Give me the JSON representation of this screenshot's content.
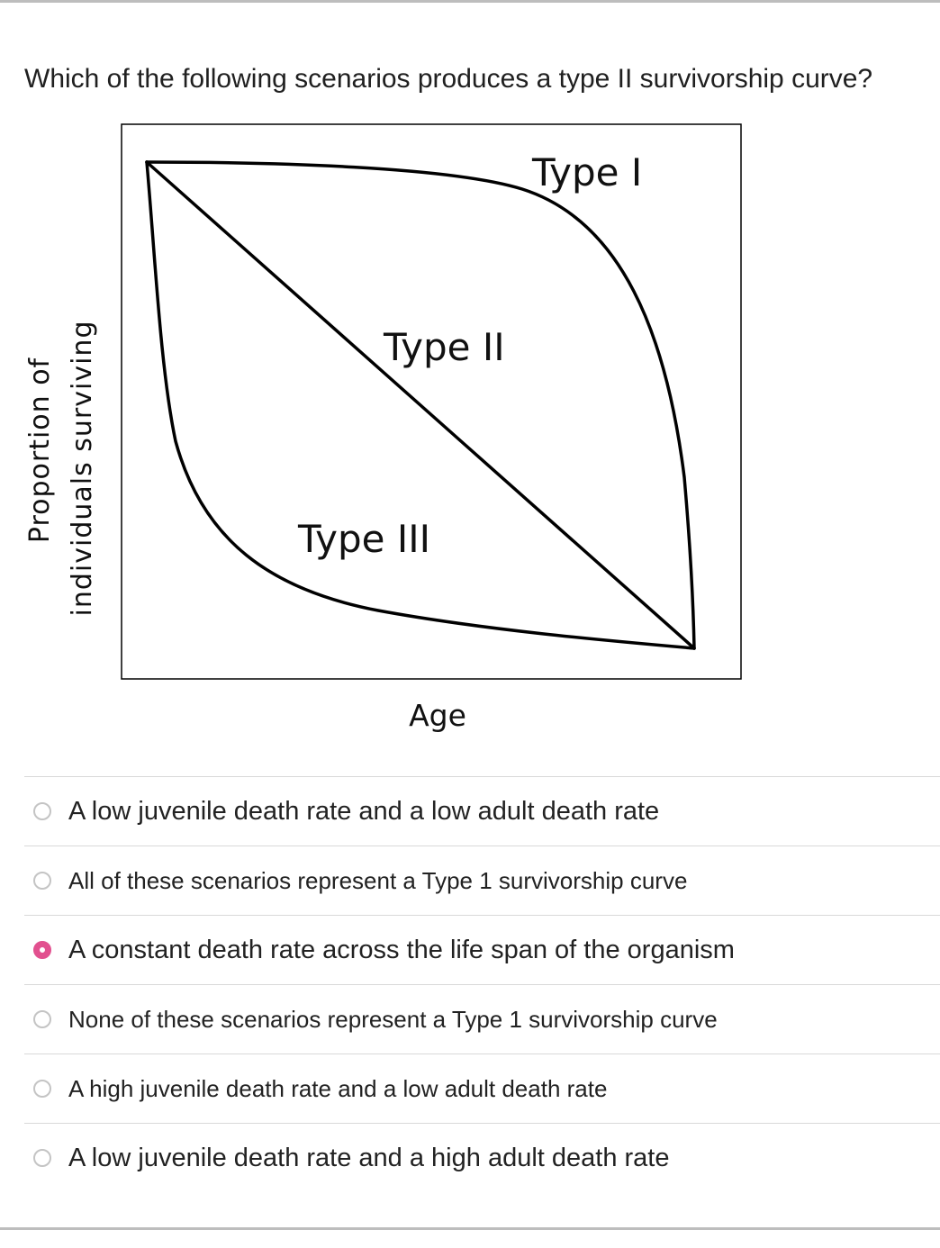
{
  "question": {
    "text": "Which of the following scenarios produces a type II survivorship curve?"
  },
  "figure": {
    "y_axis_label_line1": "Proportion of",
    "y_axis_label_line2": "individuals surviving",
    "x_axis_label": "Age",
    "curve_labels": {
      "type1": "Type I",
      "type2": "Type II",
      "type3": "Type III"
    },
    "line_color": "#000000"
  },
  "options": [
    {
      "label": "A low juvenile death rate and a low adult death rate",
      "selected": false
    },
    {
      "label": "All of these scenarios represent a Type 1 survivorship curve",
      "selected": false
    },
    {
      "label": "A constant death rate across the life span of the organism",
      "selected": true
    },
    {
      "label": "None of these scenarios represent a Type 1 survivorship curve",
      "selected": false
    },
    {
      "label": "A high juvenile death rate and a low adult death rate",
      "selected": false
    },
    {
      "label": "A low juvenile death rate and a high adult death rate",
      "selected": false
    }
  ],
  "colors": {
    "selected_radio": "#e2508f",
    "unselected_radio": "#c4c4c4",
    "divider": "#d9d9d9"
  }
}
